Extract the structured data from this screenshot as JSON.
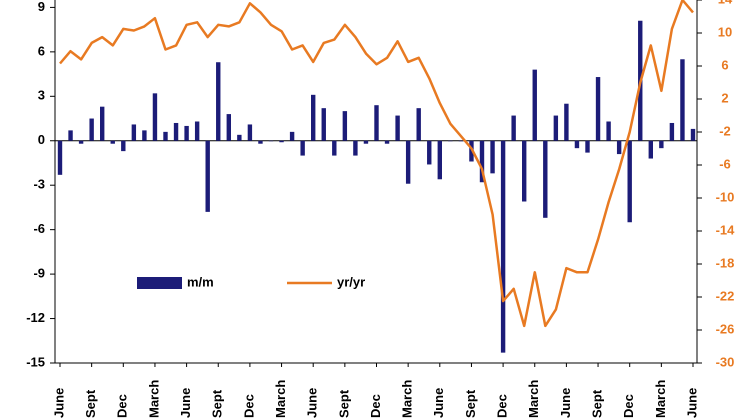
{
  "chart_data": {
    "type": "bar_line",
    "categories": [
      "June",
      null,
      null,
      "Sept",
      null,
      null,
      "Dec",
      null,
      null,
      "March",
      null,
      null,
      "June",
      null,
      null,
      "Sept",
      null,
      null,
      "Dec",
      null,
      null,
      "March",
      null,
      null,
      "June",
      null,
      null,
      "Sept",
      null,
      null,
      "Dec",
      null,
      null,
      "March",
      null,
      null,
      "June",
      null,
      null,
      "Sept",
      null,
      null,
      "Dec",
      null,
      null,
      "March",
      null,
      null,
      "June",
      null,
      null,
      "Sept",
      null,
      null,
      "Dec",
      null,
      null,
      "March",
      null,
      null,
      "June"
    ],
    "series": [
      {
        "name": "m/m",
        "type": "bar",
        "color": "#1c1c78",
        "values": [
          -2.3,
          0.7,
          -0.2,
          1.5,
          2.3,
          -0.2,
          -0.7,
          1.1,
          0.7,
          3.2,
          0.6,
          1.2,
          1.0,
          1.3,
          -4.8,
          5.3,
          1.8,
          0.4,
          1.1,
          -0.2,
          0.0,
          -0.1,
          0.6,
          -1.0,
          3.1,
          2.2,
          -1.0,
          2.0,
          -1.0,
          -0.2,
          2.4,
          -0.2,
          1.7,
          -2.9,
          2.2,
          -1.6,
          -2.6,
          0.0,
          0.0,
          -1.4,
          -2.8,
          -2.2,
          -14.3,
          1.7,
          -4.1,
          4.8,
          -5.2,
          1.7,
          2.5,
          -0.5,
          -0.8,
          4.3,
          1.3,
          -0.9,
          -5.5,
          8.1,
          -1.2,
          -0.5,
          1.2,
          5.5,
          0.8
        ]
      },
      {
        "name": "yr/yr",
        "type": "line",
        "axis": "y2",
        "color": "#e87a22",
        "values": [
          6.3,
          7.8,
          6.8,
          8.8,
          9.5,
          8.5,
          10.5,
          10.3,
          10.8,
          11.8,
          8.0,
          8.5,
          11.0,
          11.3,
          9.5,
          11.0,
          10.8,
          11.3,
          13.6,
          12.5,
          11.0,
          10.2,
          8.0,
          8.5,
          6.5,
          8.8,
          9.2,
          11.0,
          9.5,
          7.5,
          6.2,
          7.0,
          9.0,
          6.5,
          7.0,
          4.5,
          1.5,
          -1.0,
          -2.5,
          -4,
          -6.5,
          -12,
          -22.5,
          -21,
          -25.5,
          -19,
          -25.5,
          -23.5,
          -18.5,
          -19,
          -19,
          -15,
          -10.5,
          -6.5,
          -2,
          4,
          8.5,
          3,
          10.5,
          14,
          12.5
        ]
      }
    ],
    "ylim": [
      -15,
      9.5
    ],
    "yticks": [
      9,
      6,
      3,
      0,
      -3,
      -6,
      -9,
      -12,
      -15
    ],
    "y2lim": [
      -30,
      14
    ],
    "y2ticks": [
      14,
      10,
      6,
      2,
      -2,
      -6,
      -10,
      -14,
      -18,
      -22,
      -26,
      -30
    ],
    "y2tick_color": "#e87a22",
    "legend": "center-left",
    "grid": false
  }
}
